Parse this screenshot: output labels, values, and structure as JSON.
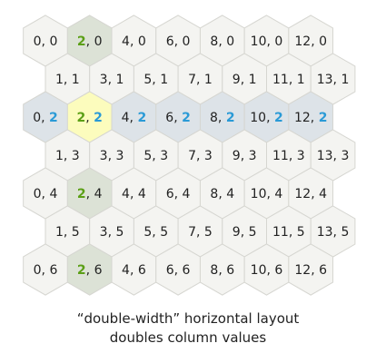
{
  "caption": {
    "line1": "“double-width” horizontal layout",
    "line2": "doubles column values"
  },
  "colors": {
    "cell_fill": "#f4f4f1",
    "cell_stroke": "#d6d6d1",
    "row_highlight_fill": "#dde3e8",
    "column_highlight_fill": "#dce2d6",
    "selected_fill": "#fcfcbd",
    "column_accent": "#5b9f16",
    "row_accent": "#2a9ad6",
    "text": "#222222"
  },
  "grid": {
    "selected": {
      "col": 2,
      "row": 2
    },
    "rows": [
      {
        "row": 0,
        "cols": [
          0,
          2,
          4,
          6,
          8,
          10,
          12
        ]
      },
      {
        "row": 1,
        "cols": [
          1,
          3,
          5,
          7,
          9,
          11,
          13
        ]
      },
      {
        "row": 2,
        "cols": [
          0,
          2,
          4,
          6,
          8,
          10,
          12
        ]
      },
      {
        "row": 3,
        "cols": [
          1,
          3,
          5,
          7,
          9,
          11,
          13
        ]
      },
      {
        "row": 4,
        "cols": [
          0,
          2,
          4,
          6,
          8,
          10,
          12
        ]
      },
      {
        "row": 5,
        "cols": [
          1,
          3,
          5,
          7,
          9,
          11,
          13
        ]
      },
      {
        "row": 6,
        "cols": [
          0,
          2,
          4,
          6,
          8,
          10,
          12
        ]
      }
    ]
  }
}
